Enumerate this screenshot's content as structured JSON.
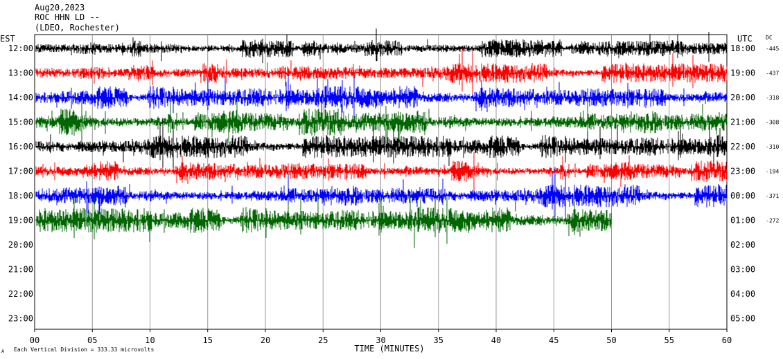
{
  "header": {
    "date": "Aug20,2023",
    "station": "ROC HHN LD --",
    "network": "(LDEO, Rochester)"
  },
  "footer": {
    "scale_note": "Each Vertical Division = 333.33 microvolts"
  },
  "chart_data": {
    "type": "line",
    "title": "Aug20,2023",
    "xlabel": "TIME (MINUTES)",
    "left_axis_label": "EST",
    "right_axis_label": "UTC",
    "dc_label": "DC",
    "x_ticks": [
      "00",
      "05",
      "10",
      "15",
      "20",
      "25",
      "30",
      "35",
      "40",
      "45",
      "50",
      "55",
      "60"
    ],
    "xlim": [
      0,
      60
    ],
    "left_ticks": [
      "12:00",
      "13:00",
      "14:00",
      "15:00",
      "16:00",
      "17:00",
      "18:00",
      "19:00",
      "20:00",
      "21:00",
      "22:00",
      "23:00"
    ],
    "right_ticks": [
      "18:00",
      "19:00",
      "20:00",
      "21:00",
      "22:00",
      "23:00",
      "00:00",
      "01:00",
      "02:00",
      "03:00",
      "04:00",
      "05:00"
    ],
    "dc_values": [
      "-445",
      "-437",
      "-318",
      "-308",
      "-310",
      "-194",
      "-371",
      "-272"
    ],
    "trace_colors": [
      "#000000",
      "#ff0000",
      "#0000ff",
      "#006600"
    ],
    "traces": [
      {
        "hour_est": "12:00",
        "color": "#000000",
        "minutes_recorded": 60
      },
      {
        "hour_est": "13:00",
        "color": "#ff0000",
        "minutes_recorded": 60
      },
      {
        "hour_est": "14:00",
        "color": "#0000ff",
        "minutes_recorded": 60
      },
      {
        "hour_est": "15:00",
        "color": "#006600",
        "minutes_recorded": 60
      },
      {
        "hour_est": "16:00",
        "color": "#000000",
        "minutes_recorded": 60
      },
      {
        "hour_est": "17:00",
        "color": "#ff0000",
        "minutes_recorded": 60
      },
      {
        "hour_est": "18:00",
        "color": "#0000ff",
        "minutes_recorded": 60
      },
      {
        "hour_est": "19:00",
        "color": "#006600",
        "minutes_recorded": 50
      }
    ]
  }
}
